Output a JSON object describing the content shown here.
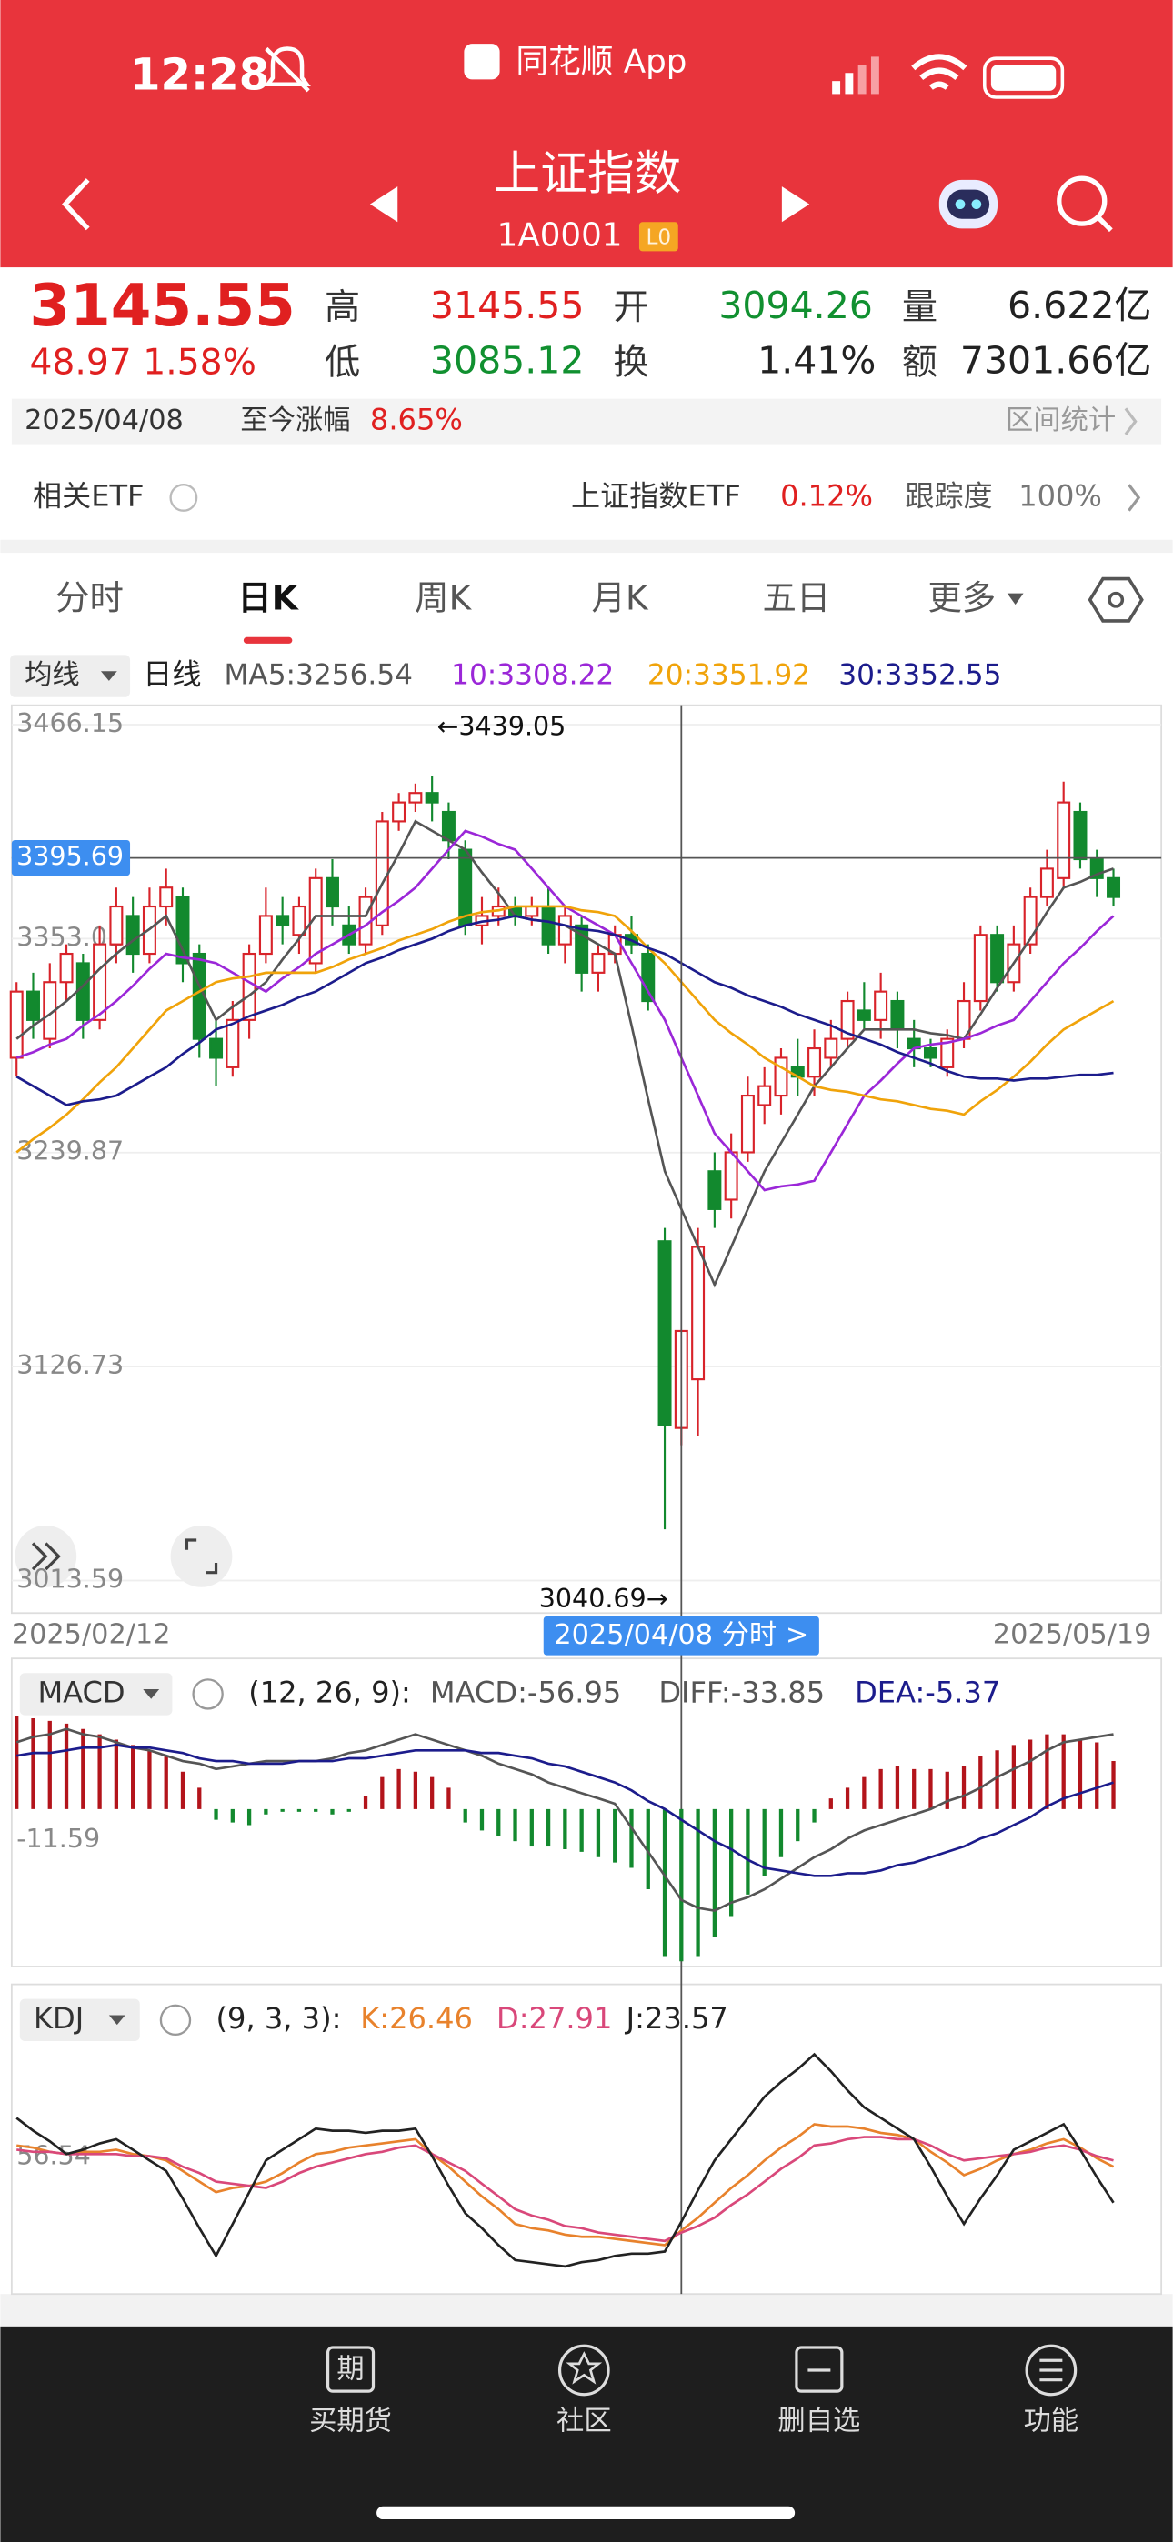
{
  "status": {
    "time": "12:28",
    "app": "同花顺 App"
  },
  "header": {
    "title": "上证指数",
    "code": "1A0001",
    "badge": "L0"
  },
  "quote": {
    "price": 3145.55,
    "change": 48.97,
    "change_pct": "1.58%",
    "high_label": "高",
    "high": 3145.55,
    "low_label": "低",
    "low": 3085.12,
    "open_label": "开",
    "open": 3094.26,
    "turnover_label": "换",
    "turnover": "1.41%",
    "volume_label": "量",
    "volume": "6.622亿",
    "amount_label": "额",
    "amount": "7301.66亿"
  },
  "info_bar": {
    "date": "2025/04/08",
    "gain_label": "至今涨幅",
    "gain": "8.65%",
    "stats": "区间统计"
  },
  "etf": {
    "label": "相关ETF",
    "name": "上证指数ETF",
    "pct": "0.12%",
    "tracking_label": "跟踪度",
    "tracking": "100%"
  },
  "tabs": [
    "分时",
    "日K",
    "周K",
    "月K",
    "五日",
    "更多"
  ],
  "chart_data": [
    {
      "type": "candlestick",
      "selector": "均线",
      "period": "日线",
      "categories": [
        "2025/02/12",
        null,
        null,
        null,
        null,
        null,
        null,
        null,
        null,
        null,
        null,
        null,
        null,
        null,
        null,
        null,
        null,
        null,
        null,
        null,
        null,
        null,
        null,
        null,
        null,
        null,
        null,
        null,
        null,
        null,
        null,
        null,
        null,
        null,
        null,
        null,
        null,
        null,
        null,
        null,
        "2025/04/08",
        null,
        null,
        null,
        null,
        null,
        null,
        null,
        null,
        null,
        null,
        null,
        null,
        null,
        null,
        null,
        null,
        null,
        null,
        null,
        null,
        null,
        null,
        null,
        null,
        null,
        "2025/05/19"
      ],
      "open": [
        3290,
        3325,
        3300,
        3330,
        3340,
        3310,
        3350,
        3365,
        3345,
        3370,
        3375,
        3345,
        3300,
        3285,
        3310,
        3345,
        3365,
        3355,
        3340,
        3385,
        3360,
        3350,
        3360,
        3415,
        3425,
        3430,
        3420,
        3400,
        3360,
        3365,
        3370,
        3365,
        3370,
        3350,
        3360,
        3335,
        3345,
        3355,
        3345,
        3193,
        3094.26,
        3120,
        3230,
        3215,
        3240,
        3265,
        3270,
        3285,
        3280,
        3290,
        3300,
        3315,
        3310,
        3320,
        3300,
        3295,
        3285,
        3300,
        3320,
        3355,
        3330,
        3350,
        3375,
        3385,
        3420,
        3395,
        3385
      ],
      "close": [
        3325,
        3310,
        3330,
        3345,
        3310,
        3350,
        3370,
        3345,
        3370,
        3380,
        3340,
        3300,
        3290,
        3310,
        3345,
        3365,
        3360,
        3370,
        3385,
        3370,
        3350,
        3375,
        3415,
        3425,
        3430,
        3425,
        3405,
        3360,
        3365,
        3370,
        3365,
        3370,
        3350,
        3365,
        3335,
        3345,
        3355,
        3350,
        3320,
        3096,
        3145.55,
        3190,
        3210,
        3240,
        3270,
        3275,
        3290,
        3280,
        3295,
        3300,
        3320,
        3310,
        3325,
        3305,
        3295,
        3290,
        3300,
        3320,
        3355,
        3330,
        3350,
        3375,
        3390,
        3425,
        3395,
        3385,
        3375
      ],
      "high": [
        3330,
        3335,
        3340,
        3350,
        3345,
        3360,
        3380,
        3375,
        3380,
        3390,
        3380,
        3350,
        3310,
        3320,
        3350,
        3380,
        3375,
        3375,
        3390,
        3395,
        3370,
        3380,
        3420,
        3430,
        3435,
        3439.05,
        3425,
        3405,
        3375,
        3380,
        3375,
        3375,
        3380,
        3370,
        3365,
        3350,
        3360,
        3365,
        3350,
        3200,
        3145.55,
        3200,
        3240,
        3250,
        3280,
        3285,
        3295,
        3300,
        3305,
        3310,
        3325,
        3330,
        3335,
        3325,
        3310,
        3300,
        3305,
        3330,
        3360,
        3360,
        3360,
        3380,
        3400,
        3436,
        3425,
        3400,
        3390
      ],
      "low": [
        3280,
        3300,
        3295,
        3320,
        3300,
        3305,
        3340,
        3335,
        3340,
        3360,
        3330,
        3290,
        3275,
        3280,
        3300,
        3340,
        3350,
        3345,
        3335,
        3360,
        3345,
        3345,
        3355,
        3410,
        3420,
        3415,
        3395,
        3355,
        3350,
        3360,
        3360,
        3360,
        3345,
        3340,
        3325,
        3325,
        3340,
        3345,
        3315,
        3040.69,
        3085.12,
        3090,
        3200,
        3205,
        3235,
        3255,
        3260,
        3270,
        3270,
        3285,
        3295,
        3305,
        3300,
        3295,
        3285,
        3285,
        3280,
        3295,
        3315,
        3325,
        3325,
        3345,
        3370,
        3380,
        3390,
        3375,
        3370
      ],
      "up_color": "#d8232a",
      "down_color": "#12892e",
      "series": [
        {
          "name": "MA5:3256.54",
          "color": "#555555",
          "values": [
            3300,
            3307,
            3313,
            3320,
            3328,
            3337,
            3345,
            3352,
            3358,
            3365,
            3347,
            3328,
            3310,
            3317,
            3323,
            3330,
            3342,
            3353,
            3365,
            3365,
            3365,
            3365,
            3382,
            3398,
            3415,
            3410,
            3405,
            3400,
            3388,
            3377,
            3365,
            3363,
            3362,
            3360,
            3355,
            3350,
            3345,
            3307,
            3268,
            3230,
            3210,
            3190,
            3170,
            3190,
            3210,
            3230,
            3245,
            3260,
            3275,
            3285,
            3295,
            3305,
            3305,
            3305,
            3305,
            3303,
            3302,
            3300,
            3313,
            3327,
            3340,
            3353,
            3367,
            3380,
            3383,
            3387,
            3390
          ]
        },
        {
          "name": "10:3308.22",
          "color": "#9b27d8",
          "values": [
            3290,
            3293,
            3297,
            3300,
            3307,
            3313,
            3320,
            3328,
            3337,
            3345,
            3343,
            3342,
            3340,
            3335,
            3330,
            3325,
            3332,
            3338,
            3345,
            3350,
            3355,
            3360,
            3367,
            3373,
            3380,
            3390,
            3400,
            3410,
            3407,
            3403,
            3400,
            3390,
            3380,
            3370,
            3365,
            3360,
            3355,
            3340,
            3325,
            3310,
            3290,
            3270,
            3250,
            3240,
            3230,
            3220,
            3222,
            3223,
            3225,
            3240,
            3255,
            3270,
            3278,
            3287,
            3295,
            3297,
            3298,
            3300,
            3303,
            3307,
            3310,
            3320,
            3330,
            3340,
            3348,
            3357,
            3365
          ]
        },
        {
          "name": "20:3351.92",
          "color": "#f0a30a",
          "values": [
            3240,
            3247,
            3253,
            3260,
            3268,
            3277,
            3285,
            3295,
            3305,
            3315,
            3320,
            3325,
            3330,
            3332,
            3333,
            3335,
            3335,
            3335,
            3335,
            3338,
            3342,
            3345,
            3348,
            3352,
            3355,
            3358,
            3362,
            3365,
            3367,
            3368,
            3370,
            3370,
            3370,
            3370,
            3368,
            3367,
            3365,
            3357,
            3348,
            3340,
            3330,
            3320,
            3310,
            3303,
            3297,
            3290,
            3285,
            3280,
            3275,
            3273,
            3272,
            3270,
            3268,
            3267,
            3265,
            3263,
            3262,
            3260,
            3267,
            3273,
            3280,
            3288,
            3297,
            3305,
            3310,
            3315,
            3320
          ]
        },
        {
          "name": "30:3352.55",
          "color": "#1c1c8c",
          "values": [
            3280,
            3275,
            3270,
            3265,
            3267,
            3268,
            3270,
            3275,
            3280,
            3285,
            3292,
            3298,
            3305,
            3308,
            3312,
            3315,
            3318,
            3322,
            3325,
            3330,
            3335,
            3340,
            3343,
            3347,
            3350,
            3353,
            3357,
            3360,
            3362,
            3363,
            3365,
            3363,
            3362,
            3360,
            3358,
            3357,
            3355,
            3352,
            3348,
            3345,
            3340,
            3335,
            3330,
            3327,
            3323,
            3320,
            3317,
            3313,
            3310,
            3307,
            3303,
            3300,
            3297,
            3293,
            3290,
            3287,
            3283,
            3280,
            3279,
            3279,
            3278,
            3279,
            3279,
            3280,
            3281,
            3281,
            3282
          ]
        }
      ],
      "ylim": [
        2996.4,
        3476.4
      ],
      "yticks": [
        3466.15,
        3353.01,
        3239.87,
        3126.73,
        3013.59
      ],
      "grid": true,
      "cursor_price": 3395.69,
      "cursor_label": "分时 >",
      "annotations": [
        {
          "text": "←3439.05"
        },
        {
          "text": "3040.69→"
        }
      ]
    },
    {
      "type": "macd",
      "label": "MACD",
      "params": "(12, 26, 9):",
      "up_color": "#b3141b",
      "down_color": "#12892e",
      "series": [
        {
          "name": "MACD:-56.95",
          "color": "#555555",
          "type": "bar",
          "values": [
            35,
            34,
            33,
            32,
            30,
            28,
            26,
            24,
            22,
            20,
            14,
            8,
            -4,
            -5,
            -6,
            -2,
            -1,
            -1,
            -1,
            -2,
            -1,
            5,
            12,
            15,
            14,
            12,
            8,
            -5,
            -8,
            -10,
            -12,
            -14,
            -14,
            -15,
            -16,
            -18,
            -20,
            -22,
            -30,
            -55,
            -56.95,
            -55,
            -48,
            -40,
            -32,
            -25,
            -18,
            -12,
            -5,
            4,
            8,
            12,
            15,
            16,
            15,
            15,
            14,
            16,
            20,
            22,
            24,
            26,
            28,
            28,
            26,
            25,
            18
          ]
        },
        {
          "name": "DIFF:-33.85",
          "color": "#555555",
          "type": "line",
          "values": [
            25,
            27,
            28,
            30,
            28,
            27,
            25,
            23,
            22,
            20,
            18,
            17,
            15,
            16,
            17,
            18,
            18,
            18,
            18,
            19,
            21,
            22,
            24,
            26,
            28,
            26,
            24,
            22,
            20,
            17,
            15,
            13,
            10,
            8,
            6,
            4,
            2,
            -7,
            -16,
            -25,
            -34,
            -37,
            -38,
            -35,
            -33,
            -30,
            -26,
            -22,
            -18,
            -15,
            -11,
            -8,
            -6,
            -4,
            -2,
            0,
            3,
            5,
            8,
            12,
            15,
            18,
            22,
            25,
            26,
            27,
            28
          ]
        },
        {
          "name": "DEA:-5.37",
          "color": "#1c1c8c",
          "type": "line",
          "values": [
            20,
            21,
            21,
            22,
            23,
            23,
            24,
            23,
            23,
            22,
            21,
            19,
            18,
            18,
            17,
            17,
            17,
            18,
            18,
            18,
            19,
            19,
            20,
            21,
            22,
            22,
            22,
            22,
            21,
            21,
            20,
            19,
            17,
            16,
            14,
            12,
            10,
            7,
            3,
            0,
            -4,
            -8,
            -12,
            -15,
            -19,
            -22,
            -23,
            -24,
            -25,
            -25,
            -24,
            -24,
            -23,
            -21,
            -20,
            -18,
            -16,
            -14,
            -11,
            -9,
            -6,
            -3,
            1,
            4,
            6,
            8,
            10
          ]
        }
      ],
      "ylim": [
        -58.9,
        56.4
      ],
      "yticks": [
        -11.59
      ]
    },
    {
      "type": "line",
      "label": "KDJ",
      "params": "(9, 3, 3):",
      "series": [
        {
          "name": "K:26.46",
          "color": "#e8822c",
          "values": [
            62,
            61,
            59,
            58,
            59,
            59,
            60,
            58,
            57,
            55,
            50,
            45,
            40,
            42,
            43,
            45,
            49,
            54,
            58,
            59,
            61,
            62,
            63,
            64,
            65,
            58,
            52,
            45,
            38,
            32,
            25,
            23,
            22,
            20,
            19,
            19,
            18,
            17,
            16,
            15,
            22,
            28,
            35,
            42,
            48,
            55,
            61,
            66,
            72,
            71,
            71,
            70,
            68,
            67,
            65,
            59,
            54,
            48,
            51,
            55,
            58,
            60,
            63,
            65,
            61,
            56,
            52
          ]
        },
        {
          "name": "D:27.91",
          "color": "#d9487a",
          "values": [
            60,
            59,
            59,
            58,
            58,
            58,
            58,
            57,
            57,
            56,
            52,
            49,
            45,
            44,
            43,
            42,
            45,
            49,
            52,
            54,
            56,
            58,
            59,
            61,
            62,
            58,
            54,
            50,
            44,
            38,
            32,
            29,
            27,
            24,
            23,
            21,
            20,
            19,
            18,
            17,
            21,
            24,
            28,
            34,
            39,
            45,
            51,
            56,
            62,
            63,
            65,
            66,
            66,
            65,
            65,
            62,
            58,
            55,
            56,
            57,
            58,
            59,
            61,
            62,
            60,
            57,
            55
          ]
        },
        {
          "name": "J:23.57",
          "color": "#222222",
          "values": [
            75,
            69,
            64,
            58,
            60,
            63,
            65,
            60,
            55,
            50,
            37,
            23,
            10,
            25,
            40,
            55,
            60,
            65,
            70,
            69,
            69,
            68,
            69,
            69,
            70,
            57,
            43,
            30,
            23,
            15,
            8,
            7,
            6,
            5,
            7,
            8,
            10,
            11,
            11,
            12,
            26,
            41,
            55,
            65,
            75,
            85,
            92,
            98,
            105,
            97,
            88,
            80,
            75,
            70,
            65,
            52,
            38,
            25,
            37,
            48,
            60,
            64,
            68,
            72,
            60,
            47,
            35
          ]
        }
      ],
      "ylim": [
        -8,
        138
      ],
      "yticks": [
        56.54
      ]
    }
  ],
  "nav": [
    {
      "icon": "期",
      "label": "买期货"
    },
    {
      "label": "社区"
    },
    {
      "label": "删自选"
    },
    {
      "label": "功能"
    }
  ]
}
